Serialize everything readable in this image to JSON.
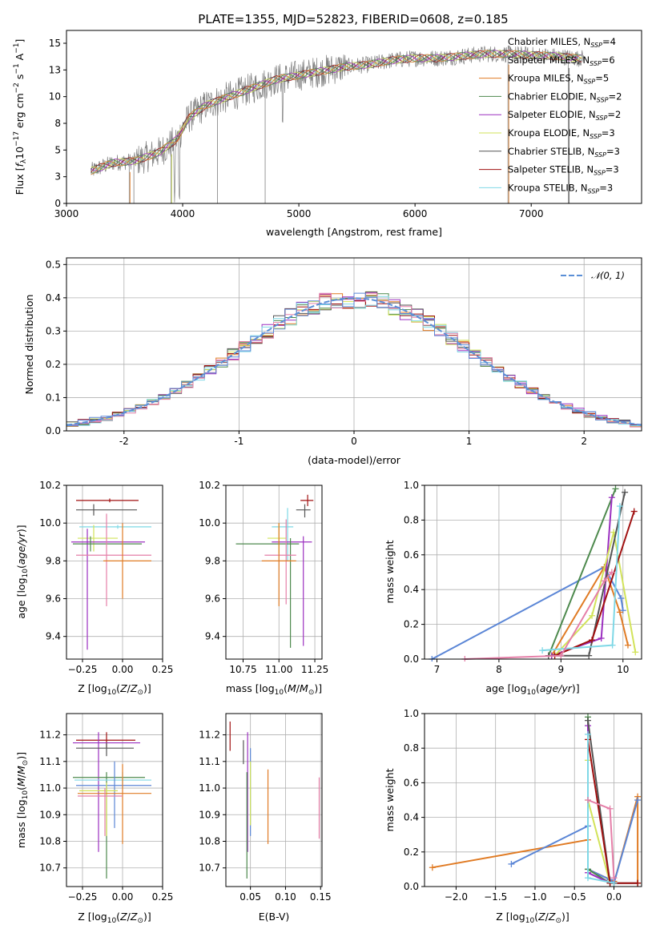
{
  "figure": {
    "title": "PLATE=1355, MJD=52823, FIBERID=0608, z=0.185"
  },
  "models": [
    {
      "name": "Chabrier MILES",
      "nssp": "4",
      "color": "#ffffff"
    },
    {
      "name": "Salpeter MILES",
      "nssp": "6",
      "color": "#ffffff"
    },
    {
      "name": "Kroupa MILES",
      "nssp": "5",
      "color": "#e07b24"
    },
    {
      "name": "Chabrier ELODIE",
      "nssp": "2",
      "color": "#4e8a4e"
    },
    {
      "name": "Salpeter ELODIE",
      "nssp": "2",
      "color": "#9b30c0"
    },
    {
      "name": "Kroupa ELODIE",
      "nssp": "3",
      "color": "#d2e35a"
    },
    {
      "name": "Chabrier STELIB",
      "nssp": "3",
      "color": "#555555"
    },
    {
      "name": "Salpeter STELIB",
      "nssp": "3",
      "color": "#a01010"
    },
    {
      "name": "Kroupa STELIB",
      "nssp": "3",
      "color": "#7fd8e6"
    }
  ],
  "colors": {
    "data": "#808080",
    "extra_pink": "#e57fa8",
    "extra_blue": "#5b86d6",
    "normal_curve": "#5b8fd6"
  },
  "chart_data": [
    {
      "id": "spectrum",
      "type": "line",
      "xlabel": "wavelength [Angstrom, rest frame]",
      "ylabel": "Flux [f_λ10^−17 erg cm^−2 s^−1 A^−1]",
      "xlim": [
        3000,
        7950
      ],
      "ylim": [
        0,
        16.2
      ],
      "xticks": [
        3000,
        4000,
        5000,
        6000,
        7000
      ],
      "yticks": [
        0.0,
        2.5,
        5.0,
        7.5,
        10.0,
        12.5,
        15.0
      ],
      "grid": false,
      "legend_position": "upper-right",
      "x": [
        3200,
        3400,
        3600,
        3800,
        3950,
        4050,
        4200,
        4400,
        4600,
        4800,
        5000,
        5200,
        5400,
        5600,
        5800,
        6000,
        6200,
        6400,
        6600,
        6800,
        7000,
        7200,
        7400
      ],
      "y": [
        3.0,
        3.8,
        4.0,
        4.8,
        6.0,
        8.0,
        9.2,
        10.0,
        10.8,
        11.6,
        12.0,
        12.4,
        12.8,
        13.0,
        13.4,
        13.6,
        13.6,
        13.8,
        14.0,
        14.0,
        13.9,
        13.8,
        13.6
      ]
    },
    {
      "id": "residuals",
      "type": "histogram",
      "xlabel": "(data-model)/error",
      "ylabel": "Normed distribution",
      "xlim": [
        -2.5,
        2.5
      ],
      "ylim": [
        0,
        0.52
      ],
      "xticks": [
        -2,
        -1,
        0,
        1,
        2
      ],
      "yticks": [
        0.0,
        0.1,
        0.2,
        0.3,
        0.4,
        0.5
      ],
      "grid": true,
      "legend": [
        {
          "label": "𝒩(0, 1)"
        }
      ],
      "legend_position": "upper-right",
      "bin_width": 0.1,
      "normal_mean": 0,
      "normal_sigma": 1
    },
    {
      "id": "age_vs_Z",
      "type": "errorbar",
      "xlabel": "Z [log10(Z/Z⊙)]",
      "ylabel": "age [log10(age/yr)]",
      "xlim": [
        -0.35,
        0.25
      ],
      "ylim": [
        9.28,
        10.2
      ],
      "xticks": [
        -0.25,
        0.0,
        0.25
      ],
      "xticklabels": [
        "−0.25",
        "0.00",
        "0.25"
      ],
      "yticks": [
        9.4,
        9.6,
        9.8,
        10.0,
        10.2
      ],
      "grid": true,
      "points": [
        {
          "x": -0.08,
          "y": 10.12,
          "xlo": -0.29,
          "xhi": 0.1,
          "ylo": 10.11,
          "yhi": 10.13,
          "c": 7
        },
        {
          "x": -0.18,
          "y": 10.07,
          "xlo": -0.29,
          "xhi": 0.09,
          "ylo": 10.04,
          "yhi": 10.1,
          "c": 6
        },
        {
          "x": -0.03,
          "y": 9.98,
          "xlo": -0.27,
          "xhi": 0.18,
          "ylo": 9.97,
          "yhi": 9.99,
          "c": 8
        },
        {
          "x": -0.18,
          "y": 9.92,
          "xlo": -0.28,
          "xhi": -0.03,
          "ylo": 9.85,
          "yhi": 9.99,
          "c": 5
        },
        {
          "x": -0.22,
          "y": 9.9,
          "xlo": -0.32,
          "xhi": 0.14,
          "ylo": 9.33,
          "yhi": 9.97,
          "c": 4
        },
        {
          "x": -0.2,
          "y": 9.89,
          "xlo": -0.31,
          "xhi": 0.12,
          "ylo": 9.85,
          "yhi": 9.93,
          "c": 3
        },
        {
          "x": -0.1,
          "y": 9.83,
          "xlo": -0.29,
          "xhi": 0.18,
          "ylo": 9.56,
          "yhi": 10.05,
          "c": 9
        },
        {
          "x": 0.0,
          "y": 9.8,
          "xlo": -0.12,
          "xhi": 0.18,
          "ylo": 9.6,
          "yhi": 10.0,
          "c": 2
        }
      ]
    },
    {
      "id": "age_vs_mass",
      "type": "errorbar",
      "xlabel": "mass [log10(M/M⊙)]",
      "ylabel": "",
      "xlim": [
        10.63,
        11.3
      ],
      "ylim": [
        9.28,
        10.2
      ],
      "xticks": [
        10.75,
        11.0,
        11.25
      ],
      "xticklabels": [
        "10.75",
        "11.00",
        "11.25"
      ],
      "yticks": [
        9.4,
        9.6,
        9.8,
        10.0,
        10.2
      ],
      "grid": true,
      "points": [
        {
          "x": 11.2,
          "y": 10.12,
          "xlo": 11.15,
          "xhi": 11.24,
          "ylo": 10.09,
          "yhi": 10.15,
          "c": 7
        },
        {
          "x": 11.18,
          "y": 10.07,
          "xlo": 11.12,
          "xhi": 11.22,
          "ylo": 10.03,
          "yhi": 10.1,
          "c": 6
        },
        {
          "x": 11.06,
          "y": 9.98,
          "xlo": 10.95,
          "xhi": 11.1,
          "ylo": 9.8,
          "yhi": 10.08,
          "c": 8
        },
        {
          "x": 11.0,
          "y": 9.92,
          "xlo": 10.92,
          "xhi": 11.05,
          "ylo": 9.84,
          "yhi": 10.0,
          "c": 5
        },
        {
          "x": 11.17,
          "y": 9.9,
          "xlo": 10.95,
          "xhi": 11.23,
          "ylo": 9.35,
          "yhi": 9.93,
          "c": 4
        },
        {
          "x": 11.08,
          "y": 9.89,
          "xlo": 10.7,
          "xhi": 11.14,
          "ylo": 9.34,
          "yhi": 9.92,
          "c": 3
        },
        {
          "x": 11.05,
          "y": 9.83,
          "xlo": 10.9,
          "xhi": 11.12,
          "ylo": 9.57,
          "yhi": 10.02,
          "c": 9
        },
        {
          "x": 11.0,
          "y": 9.8,
          "xlo": 10.88,
          "xhi": 11.12,
          "ylo": 9.56,
          "yhi": 10.0,
          "c": 2
        }
      ]
    },
    {
      "id": "massweight_vs_age",
      "type": "line",
      "xlabel": "age [log10(age/yr)]",
      "ylabel": "mass weight",
      "xlim": [
        6.8,
        10.3
      ],
      "ylim": [
        0,
        1.0
      ],
      "xticks": [
        7,
        8,
        9,
        10
      ],
      "yticks": [
        0.0,
        0.2,
        0.4,
        0.6,
        0.8,
        1.0
      ],
      "grid": true,
      "series": [
        {
          "c": 10,
          "x": [
            6.92,
            9.7,
            9.97,
            10.0
          ],
          "y": [
            0.0,
            0.53,
            0.35,
            0.28
          ]
        },
        {
          "c": 2,
          "x": [
            8.85,
            9.7,
            9.95,
            10.08
          ],
          "y": [
            0.02,
            0.53,
            0.27,
            0.08
          ]
        },
        {
          "c": 3,
          "x": [
            8.8,
            9.88
          ],
          "y": [
            0.02,
            0.98
          ]
        },
        {
          "c": 4,
          "x": [
            8.85,
            9.65,
            9.82
          ],
          "y": [
            0.02,
            0.12,
            0.93
          ]
        },
        {
          "c": 5,
          "x": [
            8.9,
            9.5,
            9.85,
            10.2
          ],
          "y": [
            0.02,
            0.25,
            0.73,
            0.04
          ]
        },
        {
          "c": 6,
          "x": [
            8.8,
            9.45,
            10.03
          ],
          "y": [
            0.02,
            0.02,
            0.96
          ]
        },
        {
          "c": 7,
          "x": [
            8.9,
            9.5,
            10.18
          ],
          "y": [
            0.02,
            0.11,
            0.85
          ]
        },
        {
          "c": 8,
          "x": [
            8.7,
            9.83,
            9.95
          ],
          "y": [
            0.05,
            0.08,
            0.88
          ]
        },
        {
          "c": 9,
          "x": [
            7.45,
            9.0,
            9.7,
            9.82
          ],
          "y": [
            0.0,
            0.02,
            0.45,
            0.5
          ]
        }
      ]
    },
    {
      "id": "mass_vs_Z",
      "type": "errorbar",
      "xlabel": "Z [log10(Z/Z⊙)]",
      "ylabel": "mass [log10(M/M⊙)]",
      "xlim": [
        -0.35,
        0.25
      ],
      "ylim": [
        10.63,
        11.28
      ],
      "xticks": [
        -0.25,
        0.0,
        0.25
      ],
      "xticklabels": [
        "−0.25",
        "0.00",
        "0.25"
      ],
      "yticks": [
        10.7,
        10.8,
        10.9,
        11.0,
        11.1,
        11.2
      ],
      "grid": true,
      "points": [
        {
          "x": -0.1,
          "y": 11.18,
          "xlo": -0.29,
          "xhi": 0.08,
          "ylo": 11.15,
          "yhi": 11.21,
          "c": 7
        },
        {
          "x": -0.15,
          "y": 11.17,
          "xlo": -0.31,
          "xhi": 0.11,
          "ylo": 10.76,
          "yhi": 11.21,
          "c": 4
        },
        {
          "x": -0.1,
          "y": 11.15,
          "xlo": -0.29,
          "xhi": 0.07,
          "ylo": 11.12,
          "yhi": 11.17,
          "c": 6
        },
        {
          "x": -0.1,
          "y": 11.04,
          "xlo": -0.31,
          "xhi": 0.14,
          "ylo": 10.66,
          "yhi": 11.06,
          "c": 3
        },
        {
          "x": 0.0,
          "y": 11.03,
          "xlo": -0.3,
          "xhi": 0.18,
          "ylo": 11.0,
          "yhi": 11.06,
          "c": 8
        },
        {
          "x": -0.05,
          "y": 11.01,
          "xlo": -0.29,
          "xhi": 0.18,
          "ylo": 10.85,
          "yhi": 11.1,
          "c": 10
        },
        {
          "x": -0.1,
          "y": 10.99,
          "xlo": -0.27,
          "xhi": -0.03,
          "ylo": 10.82,
          "yhi": 11.02,
          "c": 5
        },
        {
          "x": 0.0,
          "y": 10.98,
          "xlo": -0.28,
          "xhi": 0.18,
          "ylo": 10.79,
          "yhi": 11.09,
          "c": 2
        },
        {
          "x": -0.11,
          "y": 10.97,
          "xlo": -0.28,
          "xhi": 0.0,
          "ylo": 10.82,
          "yhi": 11.0,
          "c": 9
        }
      ]
    },
    {
      "id": "mass_vs_ebv",
      "type": "errorbar",
      "xlabel": "E(B-V)",
      "ylabel": "",
      "xlim": [
        0.015,
        0.152
      ],
      "ylim": [
        10.63,
        11.28
      ],
      "xticks": [
        0.05,
        0.1,
        0.15
      ],
      "xticklabels": [
        "0.05",
        "0.10",
        "0.15"
      ],
      "yticks": [
        10.7,
        10.8,
        10.9,
        11.0,
        11.1,
        11.2
      ],
      "grid": true,
      "points": [
        {
          "x": 0.021,
          "y": 11.2,
          "ylo": 11.14,
          "yhi": 11.25,
          "c": 7
        },
        {
          "x": 0.04,
          "y": 11.14,
          "ylo": 11.09,
          "yhi": 11.18,
          "c": 6
        },
        {
          "x": 0.046,
          "y": 11.1,
          "ylo": 10.76,
          "yhi": 11.21,
          "c": 4
        },
        {
          "x": 0.045,
          "y": 11.0,
          "ylo": 10.66,
          "yhi": 11.06,
          "c": 3
        },
        {
          "x": 0.05,
          "y": 11.1,
          "ylo": 10.82,
          "yhi": 11.15,
          "c": 10
        },
        {
          "x": 0.05,
          "y": 11.0,
          "ylo": 10.86,
          "yhi": 11.1,
          "c": 5
        },
        {
          "x": 0.075,
          "y": 10.98,
          "ylo": 10.79,
          "yhi": 11.07,
          "c": 2
        },
        {
          "x": 0.148,
          "y": 10.95,
          "ylo": 10.81,
          "yhi": 11.04,
          "c": 9
        }
      ]
    },
    {
      "id": "massweight_vs_Z",
      "type": "line",
      "xlabel": "Z [log10(Z/Z⊙)]",
      "ylabel": "mass weight",
      "xlim": [
        -2.4,
        0.35
      ],
      "ylim": [
        0,
        1.0
      ],
      "xticks": [
        -2.0,
        -1.5,
        -1.0,
        -0.5,
        0.0
      ],
      "xticklabels": [
        "−2.0",
        "−1.5",
        "−1.0",
        "−0.5",
        "0.0"
      ],
      "yticks": [
        0.0,
        0.2,
        0.4,
        0.6,
        0.8,
        1.0
      ],
      "grid": true,
      "series": [
        {
          "c": 2,
          "x": [
            -2.3,
            -0.33,
            -0.33,
            0.0,
            0.0,
            0.3,
            0.3
          ],
          "y": [
            0.11,
            0.27,
            0.1,
            0.03,
            0.02,
            0.52,
            0.02
          ]
        },
        {
          "c": 10,
          "x": [
            -1.3,
            -0.33,
            -0.33,
            -0.05,
            0.0,
            0.3
          ],
          "y": [
            0.13,
            0.35,
            0.1,
            0.04,
            0.02,
            0.5
          ]
        },
        {
          "c": 3,
          "x": [
            -0.33,
            -0.33,
            -0.05
          ],
          "y": [
            0.98,
            0.1,
            0.02
          ]
        },
        {
          "c": 4,
          "x": [
            -0.33,
            -0.33,
            -0.05
          ],
          "y": [
            0.93,
            0.08,
            0.02
          ]
        },
        {
          "c": 5,
          "x": [
            -0.33,
            -0.33,
            -0.05
          ],
          "y": [
            0.73,
            0.5,
            0.02
          ]
        },
        {
          "c": 6,
          "x": [
            -0.33,
            -0.05,
            0.3
          ],
          "y": [
            0.96,
            0.02,
            0.02
          ]
        },
        {
          "c": 7,
          "x": [
            -0.33,
            -0.05,
            0.3
          ],
          "y": [
            0.85,
            0.02,
            0.02
          ]
        },
        {
          "c": 8,
          "x": [
            -0.33,
            -0.33,
            0.0
          ],
          "y": [
            0.88,
            0.05,
            0.02
          ]
        },
        {
          "c": 9,
          "x": [
            -0.33,
            -0.05,
            0.0
          ],
          "y": [
            0.5,
            0.45,
            0.05
          ]
        }
      ]
    }
  ]
}
